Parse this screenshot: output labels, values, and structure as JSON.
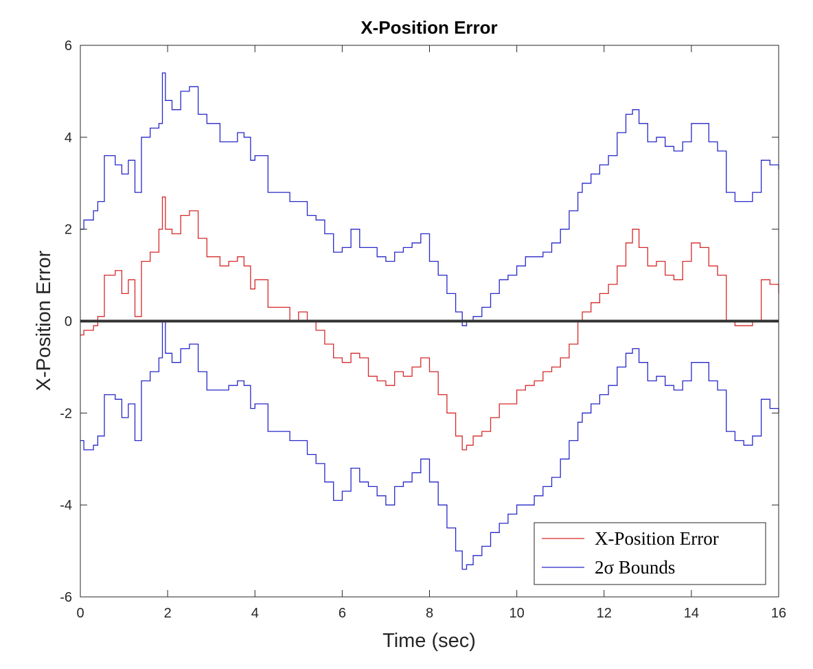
{
  "chart_data": {
    "type": "line",
    "title": "X-Position Error",
    "xlabel": "Time (sec)",
    "ylabel": "X-Position Error",
    "xlim": [
      0,
      16
    ],
    "ylim": [
      -6,
      6
    ],
    "xticks": [
      0,
      2,
      4,
      6,
      8,
      10,
      12,
      14,
      16
    ],
    "yticks": [
      -6,
      -4,
      -2,
      0,
      2,
      4,
      6
    ],
    "grid": false,
    "legend_position": "bottom-right",
    "reference_line": {
      "y": 0,
      "color": "#333333"
    },
    "series": [
      {
        "name": "X-Position Error",
        "color": "#d62728",
        "x": [
          0,
          0.08,
          0.3,
          0.4,
          0.55,
          0.8,
          0.95,
          1.1,
          1.25,
          1.4,
          1.6,
          1.8,
          1.88,
          1.95,
          2.1,
          2.3,
          2.5,
          2.7,
          2.9,
          3.2,
          3.4,
          3.6,
          3.75,
          3.9,
          4.0,
          4.3,
          4.5,
          4.8,
          5.0,
          5.2,
          5.4,
          5.6,
          5.8,
          6.0,
          6.2,
          6.4,
          6.6,
          6.8,
          7.0,
          7.2,
          7.4,
          7.6,
          7.8,
          8.0,
          8.2,
          8.4,
          8.6,
          8.75,
          8.85,
          9.0,
          9.2,
          9.4,
          9.6,
          9.8,
          10.0,
          10.2,
          10.4,
          10.6,
          10.8,
          11.0,
          11.2,
          11.4,
          11.5,
          11.7,
          11.9,
          12.1,
          12.3,
          12.5,
          12.65,
          12.8,
          13.0,
          13.2,
          13.4,
          13.6,
          13.8,
          14.0,
          14.2,
          14.4,
          14.6,
          14.8,
          15.0,
          15.2,
          15.4,
          15.6,
          15.8,
          16.0
        ],
        "values": [
          -0.3,
          -0.2,
          -0.1,
          0.1,
          1.0,
          1.1,
          0.6,
          0.9,
          0.1,
          1.3,
          1.5,
          2.0,
          2.7,
          2.0,
          1.9,
          2.3,
          2.4,
          1.8,
          1.4,
          1.2,
          1.3,
          1.4,
          1.2,
          0.7,
          0.9,
          0.3,
          0.3,
          0.0,
          0.2,
          0.0,
          -0.2,
          -0.5,
          -0.8,
          -0.9,
          -0.7,
          -0.8,
          -1.2,
          -1.3,
          -1.4,
          -1.1,
          -1.2,
          -1.0,
          -0.8,
          -1.1,
          -1.6,
          -2.0,
          -2.5,
          -2.8,
          -2.7,
          -2.5,
          -2.4,
          -2.1,
          -1.8,
          -1.8,
          -1.5,
          -1.4,
          -1.3,
          -1.1,
          -1.0,
          -0.8,
          -0.5,
          0.0,
          0.2,
          0.4,
          0.6,
          0.8,
          1.2,
          1.7,
          2.0,
          1.6,
          1.2,
          1.3,
          1.0,
          0.9,
          1.3,
          1.7,
          1.6,
          1.2,
          1.0,
          0.0,
          -0.1,
          -0.1,
          0.0,
          0.9,
          0.8,
          0.6
        ]
      },
      {
        "name": "2σ Bounds",
        "color": "#2626c8",
        "x": [
          0,
          0.08,
          0.3,
          0.4,
          0.55,
          0.8,
          0.95,
          1.1,
          1.25,
          1.4,
          1.6,
          1.8,
          1.88,
          1.95,
          2.1,
          2.3,
          2.5,
          2.7,
          2.9,
          3.2,
          3.4,
          3.6,
          3.75,
          3.9,
          4.0,
          4.3,
          4.5,
          4.8,
          5.0,
          5.2,
          5.4,
          5.6,
          5.8,
          6.0,
          6.2,
          6.4,
          6.6,
          6.8,
          7.0,
          7.2,
          7.4,
          7.6,
          7.8,
          8.0,
          8.2,
          8.4,
          8.6,
          8.75,
          8.85,
          9.0,
          9.2,
          9.4,
          9.6,
          9.8,
          10.0,
          10.2,
          10.4,
          10.6,
          10.8,
          11.0,
          11.2,
          11.4,
          11.5,
          11.7,
          11.9,
          12.1,
          12.3,
          12.5,
          12.65,
          12.8,
          13.0,
          13.2,
          13.4,
          13.6,
          13.8,
          14.0,
          14.2,
          14.4,
          14.6,
          14.8,
          15.0,
          15.2,
          15.4,
          15.6,
          15.8,
          16.0
        ],
        "values": [
          2.0,
          2.2,
          2.4,
          2.6,
          3.6,
          3.4,
          3.2,
          3.5,
          2.8,
          4.0,
          4.2,
          4.3,
          5.4,
          4.8,
          4.6,
          5.0,
          5.1,
          4.5,
          4.3,
          3.9,
          3.9,
          4.1,
          4.0,
          3.5,
          3.6,
          2.8,
          2.8,
          2.6,
          2.6,
          2.3,
          2.2,
          1.9,
          1.5,
          1.6,
          2.0,
          1.6,
          1.6,
          1.4,
          1.3,
          1.5,
          1.6,
          1.7,
          1.9,
          1.3,
          1.0,
          0.6,
          0.2,
          -0.1,
          0.0,
          0.1,
          0.3,
          0.6,
          0.9,
          1.0,
          1.2,
          1.4,
          1.4,
          1.5,
          1.7,
          2.0,
          2.4,
          2.8,
          3.0,
          3.2,
          3.4,
          3.6,
          4.1,
          4.5,
          4.6,
          4.3,
          3.9,
          4.0,
          3.8,
          3.7,
          3.9,
          4.3,
          4.3,
          3.9,
          3.7,
          2.8,
          2.6,
          2.6,
          2.8,
          3.5,
          3.4,
          3.3
        ]
      },
      {
        "name": "2σ Bounds",
        "color": "#2626c8",
        "x": [
          0,
          0.08,
          0.3,
          0.4,
          0.55,
          0.8,
          0.95,
          1.1,
          1.25,
          1.4,
          1.6,
          1.8,
          1.88,
          1.95,
          2.1,
          2.3,
          2.5,
          2.7,
          2.9,
          3.2,
          3.4,
          3.6,
          3.75,
          3.9,
          4.0,
          4.3,
          4.5,
          4.8,
          5.0,
          5.2,
          5.4,
          5.6,
          5.8,
          6.0,
          6.2,
          6.4,
          6.6,
          6.8,
          7.0,
          7.2,
          7.4,
          7.6,
          7.8,
          8.0,
          8.2,
          8.4,
          8.6,
          8.75,
          8.85,
          9.0,
          9.2,
          9.4,
          9.6,
          9.8,
          10.0,
          10.2,
          10.4,
          10.6,
          10.8,
          11.0,
          11.2,
          11.4,
          11.5,
          11.7,
          11.9,
          12.1,
          12.3,
          12.5,
          12.65,
          12.8,
          13.0,
          13.2,
          13.4,
          13.6,
          13.8,
          14.0,
          14.2,
          14.4,
          14.6,
          14.8,
          15.0,
          15.2,
          15.4,
          15.6,
          15.8,
          16.0
        ],
        "values": [
          -2.6,
          -2.8,
          -2.7,
          -2.5,
          -1.6,
          -1.7,
          -2.1,
          -1.8,
          -2.6,
          -1.3,
          -1.1,
          -0.8,
          0.0,
          -0.7,
          -0.9,
          -0.6,
          -0.5,
          -1.1,
          -1.5,
          -1.5,
          -1.4,
          -1.3,
          -1.4,
          -1.9,
          -1.8,
          -2.4,
          -2.4,
          -2.6,
          -2.6,
          -2.9,
          -3.1,
          -3.5,
          -3.9,
          -3.7,
          -3.2,
          -3.5,
          -3.6,
          -3.8,
          -4.0,
          -3.6,
          -3.5,
          -3.3,
          -3.0,
          -3.5,
          -4.0,
          -4.5,
          -5.0,
          -5.4,
          -5.3,
          -5.1,
          -4.9,
          -4.6,
          -4.4,
          -4.2,
          -4.0,
          -4.0,
          -3.8,
          -3.6,
          -3.4,
          -3.0,
          -2.6,
          -2.2,
          -2.0,
          -1.8,
          -1.6,
          -1.4,
          -1.0,
          -0.7,
          -0.6,
          -0.9,
          -1.3,
          -1.2,
          -1.4,
          -1.5,
          -1.3,
          -0.9,
          -0.9,
          -1.3,
          -1.5,
          -2.4,
          -2.6,
          -2.7,
          -2.5,
          -1.7,
          -1.9,
          -2.0
        ]
      }
    ]
  }
}
